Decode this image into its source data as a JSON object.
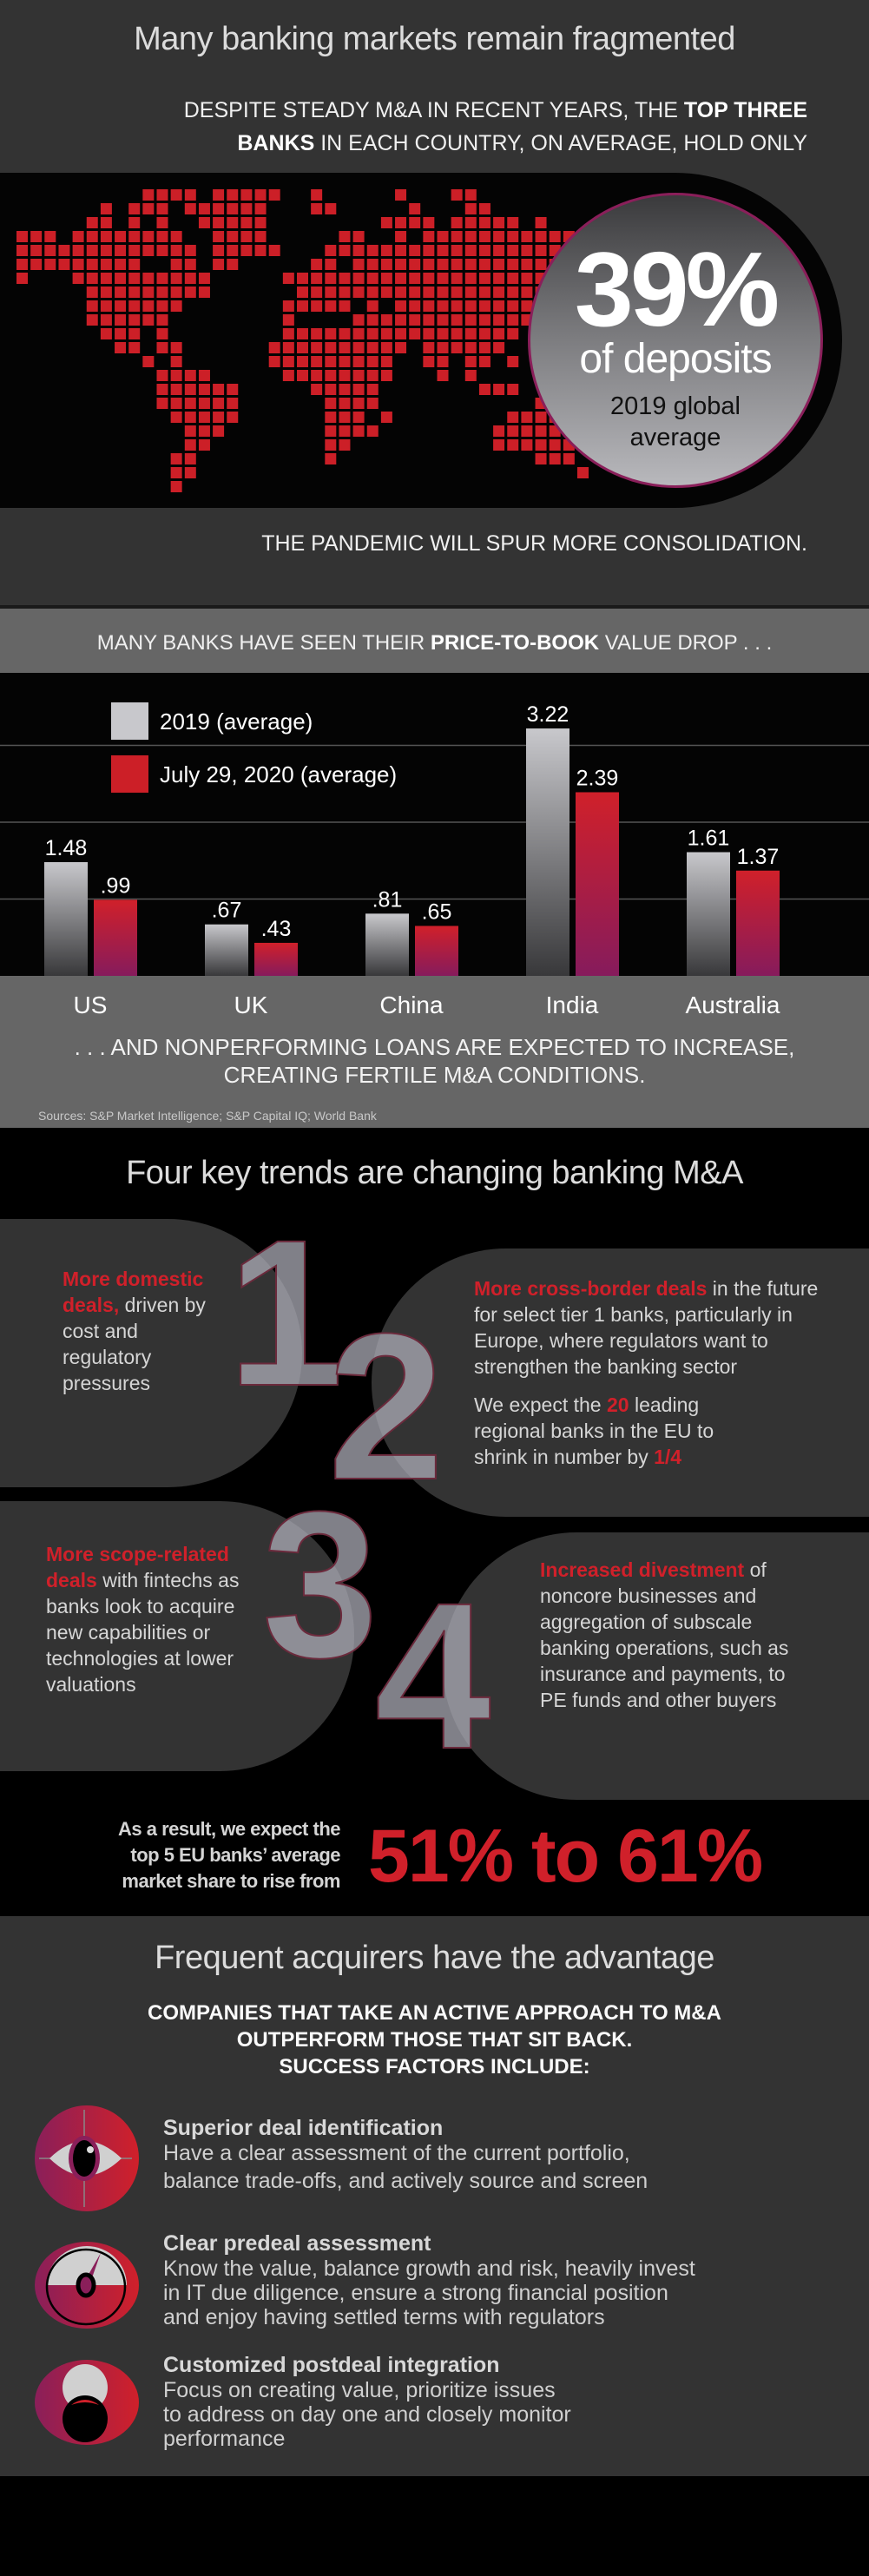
{
  "section1": {
    "title": "Many banking markets remain fragmented",
    "subhead_a": "Despite steady M&A in recent years, the ",
    "subhead_bold_a": "top three",
    "subhead_bold_b": "banks",
    "subhead_b": " in each country, on average, hold only",
    "stat_value": "39%",
    "stat_label": "of deposits",
    "stat_note_1": "2019 global",
    "stat_note_2": "average",
    "footer": "The pandemic will spur more consolidation."
  },
  "section2": {
    "title_a": "Many banks have seen their ",
    "title_bold": "price-to-book",
    "title_b": " value drop . . .",
    "closing_1": ". . .  And nonperforming loans are expected to increase,",
    "closing_2": "creating fertile M&A conditions.",
    "sources": "Sources: S&P Market Intelligence; S&P Capital IQ; World Bank"
  },
  "chart_data": {
    "type": "bar",
    "categories": [
      "US",
      "UK",
      "China",
      "India",
      "Australia"
    ],
    "series": [
      {
        "name": "2019 (average)",
        "values": [
          1.48,
          0.67,
          0.81,
          3.22,
          1.61
        ],
        "labels": [
          "1.48",
          ".67",
          ".81",
          "3.22",
          "1.61"
        ],
        "color": "#c8c8cc"
      },
      {
        "name": "July 29, 2020 (average)",
        "values": [
          0.99,
          0.43,
          0.65,
          2.39,
          1.37
        ],
        "labels": [
          ".99",
          ".43",
          ".65",
          "2.39",
          "1.37"
        ],
        "color": "#d0202a"
      }
    ],
    "ylim": [
      0,
      4
    ],
    "grid": true,
    "legend": "top-left"
  },
  "section3": {
    "title": "Four key trends are changing banking M&A",
    "trends": [
      {
        "number": "1",
        "bold": "More domestic deals,",
        "text": " driven by cost and regulatory pressures"
      },
      {
        "number": "2",
        "bold": "More cross-border deals",
        "text": " in the future for select tier 1 banks, particularly in Europe, where regulators want to strengthen the banking sector",
        "extra_a": "We expect the ",
        "extra_bold": "20",
        "extra_b": " leading regional banks in the EU to shrink in number by ",
        "extra_bold2": "1/4"
      },
      {
        "number": "3",
        "bold": "More scope-related deals",
        "text": " with fintechs as banks look to acquire new capabilities or technologies at lower valuations"
      },
      {
        "number": "4",
        "bold": "Increased divestment",
        "text": " of noncore businesses and aggregation of subscale banking operations, such as insurance and payments, to PE funds and other buyers"
      }
    ],
    "result_text_1": "As a result, we expect the",
    "result_text_2": "top 5 EU banks’ average",
    "result_text_3": "market share to rise from",
    "result_value": "51% to 61%"
  },
  "section4": {
    "title": "Frequent acquirers have the advantage",
    "intro_1": "Companies that take an active approach to M&A",
    "intro_2": "outperform those that sit back.",
    "intro_3": "Success factors include:",
    "factors": [
      {
        "icon": "eye-target-icon",
        "title": "Superior deal identification",
        "lines": [
          "Have a clear assessment of the current portfolio,",
          "balance trade-offs, and actively source and screen"
        ]
      },
      {
        "icon": "gauge-icon",
        "title": "Clear predeal assessment",
        "lines": [
          "Know the value, balance growth and risk, heavily invest",
          "in IT due diligence, ensure a strong financial position",
          "and enjoy having settled terms with regulators"
        ]
      },
      {
        "icon": "integration-icon",
        "title": "Customized postdeal integration",
        "lines": [
          "Focus on creating value, prioritize issues",
          "to address on day one and closely monitor",
          "performance"
        ]
      }
    ]
  },
  "colors": {
    "accent_red": "#d0202a",
    "accent_purple": "#8a1f5a",
    "dark_gray": "#333333",
    "mid_gray": "#666666"
  }
}
